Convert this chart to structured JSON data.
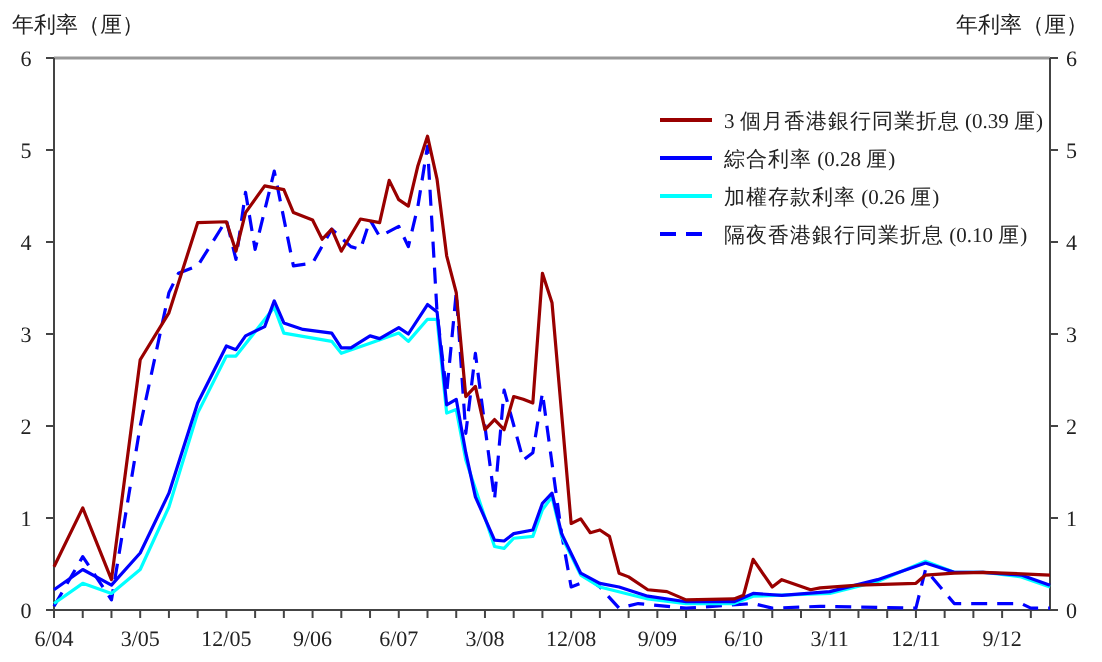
{
  "chart_data": {
    "type": "line",
    "ylabel": "年利率（厘）",
    "y2label": "年利率（厘）",
    "xlim": [
      "2004-06",
      "2013-02"
    ],
    "ylim": [
      0,
      6
    ],
    "yticks": [
      0,
      1,
      2,
      3,
      4,
      5,
      6
    ],
    "y2lim": [
      0,
      6
    ],
    "y2ticks": [
      0,
      1,
      2,
      3,
      4,
      5,
      6
    ],
    "xticks": [
      {
        "value": "2004-06",
        "label": "6/04"
      },
      {
        "value": "2004-09",
        "label": null
      },
      {
        "value": "2004-12",
        "label": null
      },
      {
        "value": "2005-03",
        "label": "3/05"
      },
      {
        "value": "2005-06",
        "label": null
      },
      {
        "value": "2005-09",
        "label": null
      },
      {
        "value": "2005-12",
        "label": "12/05"
      },
      {
        "value": "2006-03",
        "label": null
      },
      {
        "value": "2006-06",
        "label": null
      },
      {
        "value": "2006-09",
        "label": "9/06"
      },
      {
        "value": "2006-12",
        "label": null
      },
      {
        "value": "2007-03",
        "label": null
      },
      {
        "value": "2007-06",
        "label": "6/07"
      },
      {
        "value": "2007-09",
        "label": null
      },
      {
        "value": "2007-12",
        "label": null
      },
      {
        "value": "2008-03",
        "label": "3/08"
      },
      {
        "value": "2008-06",
        "label": null
      },
      {
        "value": "2008-09",
        "label": null
      },
      {
        "value": "2008-12",
        "label": "12/08"
      },
      {
        "value": "2009-03",
        "label": null
      },
      {
        "value": "2009-06",
        "label": null
      },
      {
        "value": "2009-09",
        "label": "9/09"
      },
      {
        "value": "2009-12",
        "label": null
      },
      {
        "value": "2010-03",
        "label": null
      },
      {
        "value": "2010-06",
        "label": "6/10"
      },
      {
        "value": "2010-09",
        "label": null
      },
      {
        "value": "2010-12",
        "label": null
      },
      {
        "value": "2011-03",
        "label": "3/11"
      },
      {
        "value": "2011-06",
        "label": null
      },
      {
        "value": "2011-09",
        "label": null
      },
      {
        "value": "2011-12",
        "label": "12/11"
      },
      {
        "value": "2012-03",
        "label": null
      },
      {
        "value": "2012-06",
        "label": null
      },
      {
        "value": "2012-09",
        "label": "9/12"
      },
      {
        "value": "2012-12",
        "label": null
      }
    ],
    "grid": false,
    "legend": "top right",
    "series": [
      {
        "name": "3 個月香港銀行同業折息 (0.39 厘)",
        "color": "#990000",
        "line_style": "solid",
        "x": [
          "2004-06",
          "2004-09",
          "2004-12",
          "2005-03",
          "2005-06",
          "2005-09",
          "2005-12",
          "2006-01",
          "2006-02",
          "2006-04",
          "2006-06",
          "2006-07",
          "2006-09",
          "2006-10",
          "2006-11",
          "2006-12",
          "2007-02",
          "2007-04",
          "2007-05",
          "2007-06",
          "2007-07",
          "2007-08",
          "2007-09",
          "2007-10",
          "2007-11",
          "2007-12",
          "2008-01",
          "2008-02",
          "2008-03",
          "2008-04",
          "2008-05",
          "2008-06",
          "2008-07",
          "2008-08",
          "2008-09",
          "2008-10",
          "2008-12",
          "2009-01",
          "2009-02",
          "2009-03",
          "2009-04",
          "2009-05",
          "2009-06",
          "2009-08",
          "2009-10",
          "2009-12",
          "2010-05",
          "2010-06",
          "2010-07",
          "2010-09",
          "2010-10",
          "2011-01",
          "2011-02",
          "2011-06",
          "2011-12",
          "2012-01",
          "2012-04",
          "2012-07",
          "2013-02"
        ],
        "values": [
          0.47,
          1.11,
          0.33,
          2.72,
          3.23,
          4.21,
          4.22,
          3.9,
          4.32,
          4.61,
          4.57,
          4.32,
          4.24,
          4.03,
          4.14,
          3.9,
          4.25,
          4.21,
          4.67,
          4.46,
          4.39,
          4.83,
          5.15,
          4.68,
          3.85,
          3.45,
          2.32,
          2.43,
          1.96,
          2.07,
          1.96,
          2.32,
          2.29,
          2.25,
          3.66,
          3.34,
          0.94,
          0.99,
          0.84,
          0.87,
          0.8,
          0.4,
          0.36,
          0.22,
          0.2,
          0.11,
          0.12,
          0.16,
          0.55,
          0.25,
          0.33,
          0.22,
          0.24,
          0.27,
          0.29,
          0.38,
          0.4,
          0.41,
          0.38
        ]
      },
      {
        "name": "綜合利率 (0.28 厘)",
        "color": "#0000ff",
        "line_style": "solid",
        "x": [
          "2004-06",
          "2004-09",
          "2004-12",
          "2005-03",
          "2005-06",
          "2005-09",
          "2005-12",
          "2006-01",
          "2006-02",
          "2006-04",
          "2006-05",
          "2006-06",
          "2006-08",
          "2006-11",
          "2006-12",
          "2007-01",
          "2007-03",
          "2007-04",
          "2007-06",
          "2007-07",
          "2007-09",
          "2007-10",
          "2007-11",
          "2007-12",
          "2008-01",
          "2008-02",
          "2008-04",
          "2008-05",
          "2008-06",
          "2008-08",
          "2008-09",
          "2008-10",
          "2008-11",
          "2009-01",
          "2009-03",
          "2009-05",
          "2009-08",
          "2009-12",
          "2010-05",
          "2010-07",
          "2010-10",
          "2011-03",
          "2011-08",
          "2012-01",
          "2012-04",
          "2012-07",
          "2012-11",
          "2013-02"
        ],
        "values": [
          0.22,
          0.44,
          0.27,
          0.62,
          1.27,
          2.25,
          2.87,
          2.83,
          2.98,
          3.08,
          3.36,
          3.12,
          3.05,
          3.01,
          2.85,
          2.85,
          2.98,
          2.95,
          3.07,
          3.0,
          3.32,
          3.24,
          2.23,
          2.29,
          1.71,
          1.23,
          0.76,
          0.75,
          0.83,
          0.87,
          1.16,
          1.27,
          0.83,
          0.4,
          0.29,
          0.25,
          0.15,
          0.09,
          0.09,
          0.18,
          0.16,
          0.2,
          0.33,
          0.51,
          0.41,
          0.41,
          0.38,
          0.27
        ]
      },
      {
        "name": "加權存款利率 (0.26 厘)",
        "color": "#00ffff",
        "line_style": "solid",
        "x": [
          "2004-06",
          "2004-09",
          "2004-12",
          "2005-03",
          "2005-06",
          "2005-09",
          "2005-12",
          "2006-01",
          "2006-05",
          "2006-06",
          "2006-11",
          "2006-12",
          "2007-03",
          "2007-06",
          "2007-07",
          "2007-09",
          "2007-10",
          "2007-11",
          "2007-12",
          "2008-01",
          "2008-04",
          "2008-05",
          "2008-06",
          "2008-08",
          "2008-09",
          "2008-10",
          "2008-11",
          "2009-01",
          "2009-03",
          "2009-08",
          "2009-12",
          "2010-05",
          "2010-07",
          "2011-03",
          "2011-08",
          "2012-01",
          "2012-04",
          "2012-07",
          "2012-11",
          "2013-02"
        ],
        "values": [
          0.07,
          0.29,
          0.18,
          0.44,
          1.12,
          2.14,
          2.76,
          2.76,
          3.29,
          3.01,
          2.92,
          2.79,
          2.9,
          3.01,
          2.92,
          3.16,
          3.16,
          2.14,
          2.18,
          1.63,
          0.69,
          0.67,
          0.78,
          0.8,
          1.09,
          1.23,
          0.8,
          0.38,
          0.25,
          0.12,
          0.07,
          0.07,
          0.15,
          0.18,
          0.31,
          0.53,
          0.41,
          0.41,
          0.36,
          0.25
        ]
      },
      {
        "name": "隔夜香港銀行同業折息 (0.10 厘)",
        "color": "#0000ff",
        "line_style": "dashed",
        "x": [
          "2004-06",
          "2004-09",
          "2004-12",
          "2005-03",
          "2005-06",
          "2005-07",
          "2005-09",
          "2005-12",
          "2006-01",
          "2006-02",
          "2006-03",
          "2006-05",
          "2006-07",
          "2006-09",
          "2006-11",
          "2007-01",
          "2007-02",
          "2007-03",
          "2007-04",
          "2007-06",
          "2007-07",
          "2007-08",
          "2007-09",
          "2007-10",
          "2007-11",
          "2007-12",
          "2008-01",
          "2008-02",
          "2008-04",
          "2008-05",
          "2008-07",
          "2008-08",
          "2008-09",
          "2008-11",
          "2008-12",
          "2009-02",
          "2009-03",
          "2009-05",
          "2009-07",
          "2009-12",
          "2010-07",
          "2010-09",
          "2011-02",
          "2011-12",
          "2012-01",
          "2012-04",
          "2012-11",
          "2012-12",
          "2013-02"
        ],
        "values": [
          0.04,
          0.58,
          0.11,
          2.0,
          3.45,
          3.66,
          3.74,
          4.24,
          3.81,
          4.54,
          3.92,
          4.77,
          3.74,
          3.77,
          4.14,
          3.95,
          3.92,
          4.24,
          4.06,
          4.17,
          3.95,
          4.39,
          5.04,
          3.23,
          2.36,
          3.45,
          1.92,
          2.79,
          1.2,
          2.39,
          1.63,
          1.71,
          2.36,
          0.83,
          0.25,
          0.33,
          0.25,
          0.02,
          0.07,
          0.02,
          0.07,
          0.02,
          0.04,
          0.02,
          0.44,
          0.07,
          0.07,
          0.02,
          0.02
        ]
      }
    ]
  }
}
